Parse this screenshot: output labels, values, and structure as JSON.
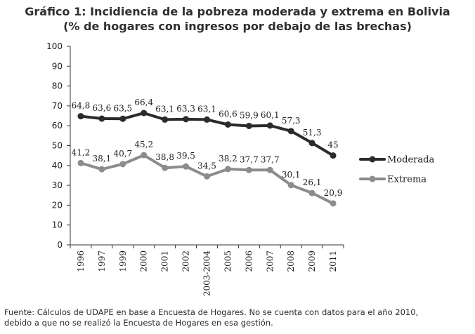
{
  "header": {
    "title_line1": "Gráfico 1: Incidiencia de la pobreza moderada y extrema en Bolivia",
    "title_line2": "(% de hogares con ingresos por debajo de las brechas)"
  },
  "footnote": {
    "line1": "Fuente: Cálculos de UDAPE en base a Encuesta de Hogares. No se cuenta con datos para el año 2010,",
    "line2": "debido a que no se realizó la Encuesta de Hogares en esa gestión."
  },
  "chart_data": {
    "type": "line",
    "title": "Gráfico 1: Incidiencia de la pobreza moderada y extrema en Bolivia (% de hogares con ingresos por debajo de las brechas)",
    "categories": [
      "1996",
      "1997",
      "1999",
      "2000",
      "2001",
      "2002",
      "2003-2004",
      "2005",
      "2006",
      "2007",
      "2008",
      "2009",
      "2011"
    ],
    "series": [
      {
        "name": "Moderada",
        "color": "#2b2b2b",
        "values": [
          64.8,
          63.6,
          63.5,
          66.4,
          63.1,
          63.3,
          63.1,
          60.6,
          59.9,
          60.1,
          57.3,
          51.3,
          45
        ],
        "labels": [
          "64,8",
          "63,6",
          "63,5",
          "66,4",
          "63,1",
          "63,3",
          "63,1",
          "60,6",
          "59,9",
          "60,1",
          "57,3",
          "51,3",
          "45"
        ]
      },
      {
        "name": "Extrema",
        "color": "#8c8c8c",
        "values": [
          41.2,
          38.1,
          40.7,
          45.2,
          38.8,
          39.5,
          34.5,
          38.2,
          37.7,
          37.7,
          30.1,
          26.1,
          20.9
        ],
        "labels": [
          "41,2",
          "38,1",
          "40,7",
          "45,2",
          "38,8",
          "39,5",
          "34,5",
          "38,2",
          "37,7",
          "37,7",
          "30,1",
          "26,1",
          "20,9"
        ]
      }
    ],
    "ylim": [
      0,
      100
    ],
    "yticks": [
      "0",
      "10",
      "20",
      "30",
      "40",
      "50",
      "60",
      "70",
      "80",
      "90",
      "100"
    ],
    "grid": false,
    "legend": "right"
  }
}
